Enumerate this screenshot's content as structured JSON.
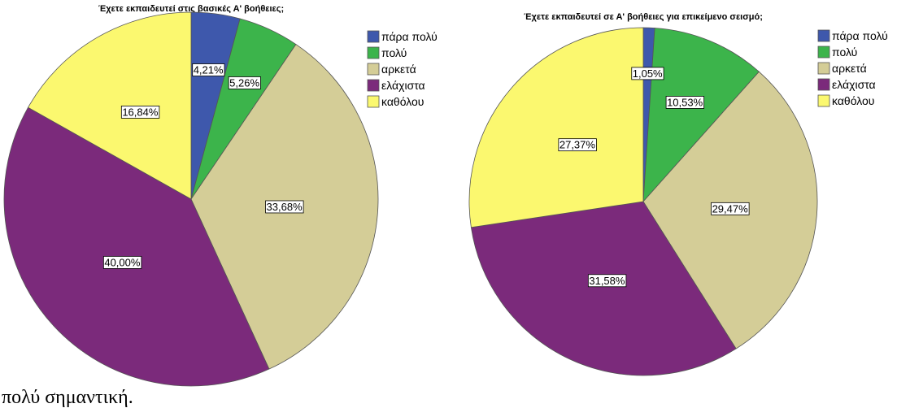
{
  "chart_data": [
    {
      "type": "pie",
      "title": "Έχετε εκπαιδευτεί στις βασικές Α' βοήθειες;",
      "categories": [
        "πάρα πολύ",
        "πολύ",
        "αρκετά",
        "ελάχιστα",
        "καθόλου"
      ],
      "values": [
        4.21,
        5.26,
        33.68,
        40.0,
        16.84
      ],
      "value_labels": [
        "4,21%",
        "5,26%",
        "33,68%",
        "40,00%",
        "16,84%"
      ],
      "colors": [
        "#3e58ac",
        "#3cb44b",
        "#d4cd97",
        "#7b2a7b",
        "#fbf86f"
      ],
      "legend": "right"
    },
    {
      "type": "pie",
      "title": "Έχετε εκπαιδευτεί σε Α' βοήθειες για επικείμενο σεισμό;",
      "categories": [
        "πάρα πολύ",
        "πολύ",
        "αρκετά",
        "ελάχιστα",
        "καθόλου"
      ],
      "values": [
        1.05,
        10.53,
        29.47,
        31.58,
        27.37
      ],
      "value_labels": [
        "1,05%",
        "10,53%",
        "29,47%",
        "31,58%",
        "27,37%"
      ],
      "colors": [
        "#3e58ac",
        "#3cb44b",
        "#d4cd97",
        "#7b2a7b",
        "#fbf86f"
      ],
      "legend": "right"
    }
  ],
  "text": "πολύ σημαντική."
}
